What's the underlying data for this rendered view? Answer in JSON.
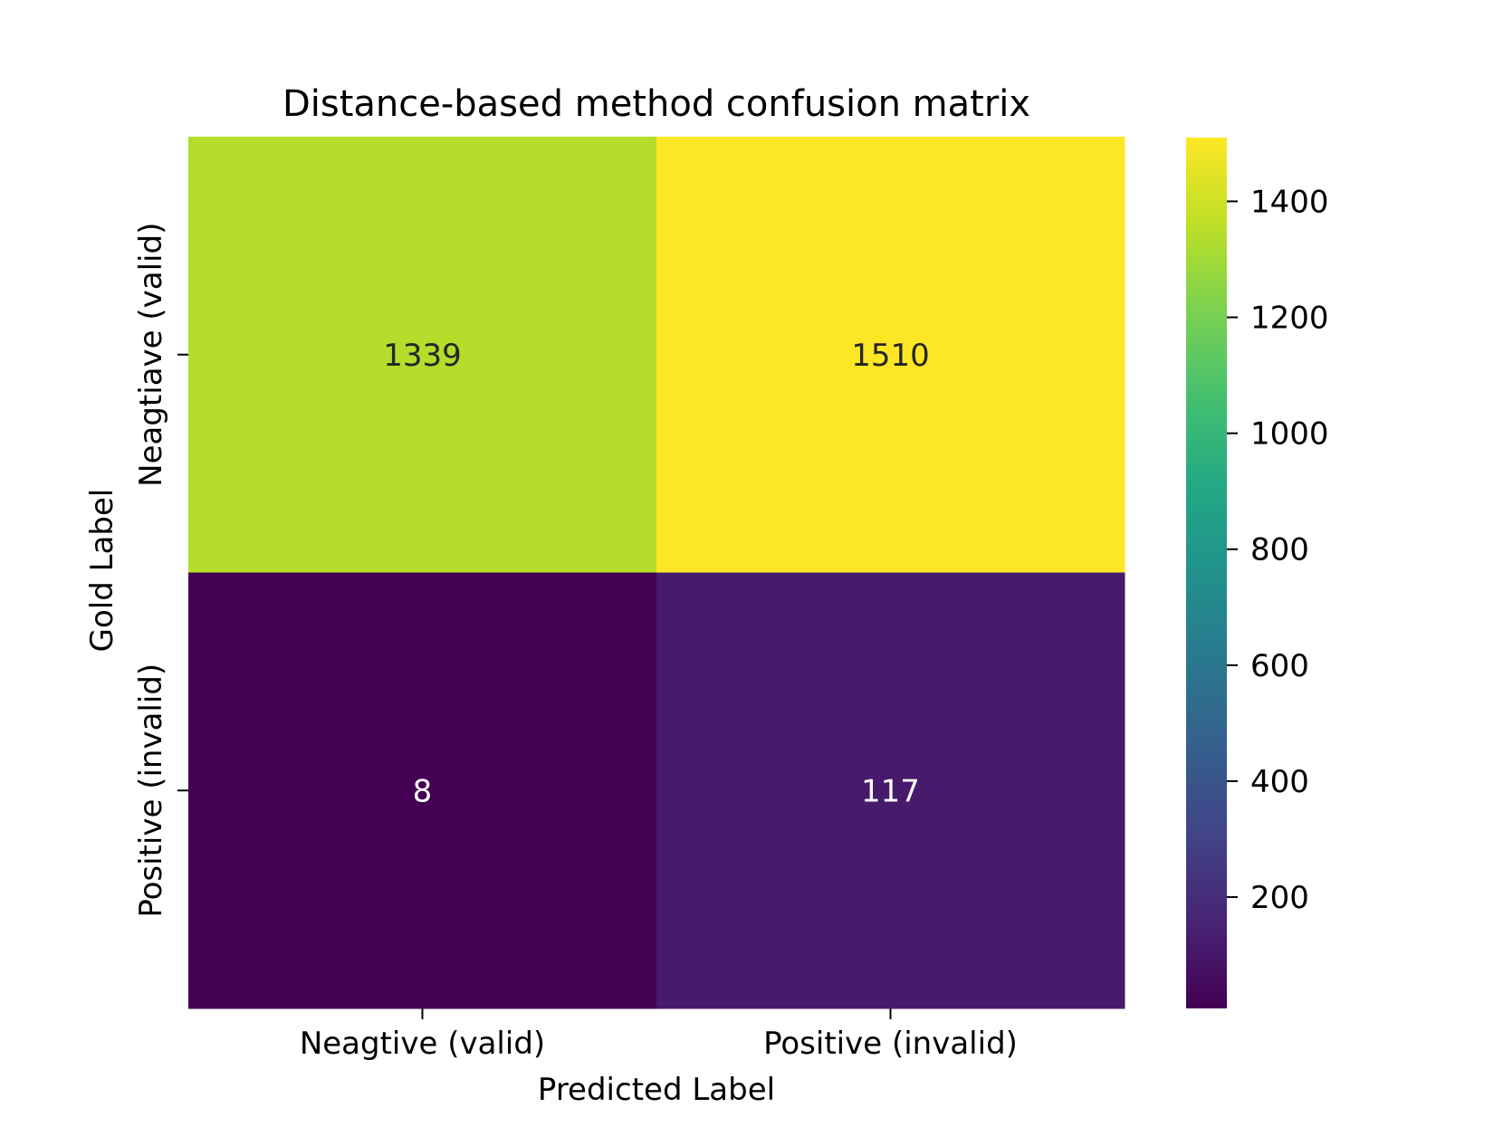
{
  "chart_data": {
    "type": "heatmap",
    "title": "Distance-based method confusion matrix",
    "xlabel": "Predicted Label",
    "ylabel": "Gold Label",
    "x_categories": [
      "Neagtive (valid)",
      "Positive (invalid)"
    ],
    "y_categories": [
      "Neagtiave (valid)",
      "Positive (invalid)"
    ],
    "values": [
      [
        1339,
        1510
      ],
      [
        8,
        117
      ]
    ],
    "colormap": "viridis",
    "colorbar": {
      "vmin": 8,
      "vmax": 1510,
      "ticks": [
        200,
        400,
        600,
        800,
        1000,
        1200,
        1400
      ]
    },
    "grid": false,
    "legend": "colorbar right"
  }
}
